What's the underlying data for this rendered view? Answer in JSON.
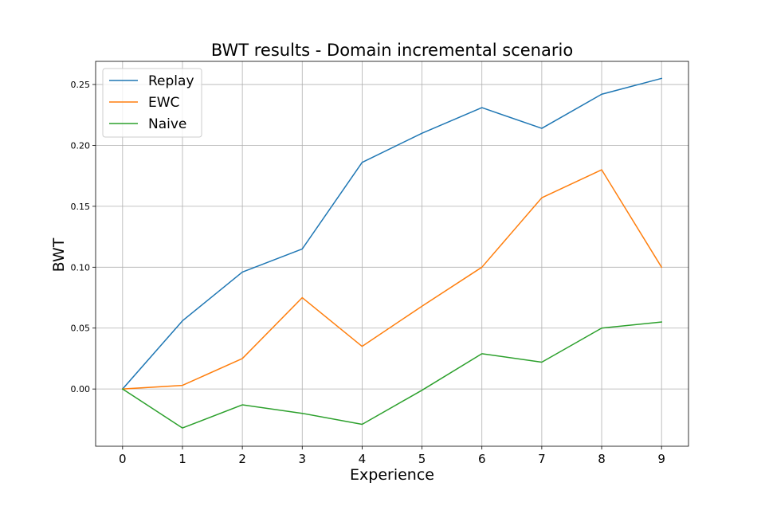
{
  "chart_data": {
    "type": "line",
    "title": "BWT results - Domain incremental scenario",
    "xlabel": "Experience",
    "ylabel": "BWT",
    "x": [
      0,
      1,
      2,
      3,
      4,
      5,
      6,
      7,
      8,
      9
    ],
    "xticks": [
      0,
      1,
      2,
      3,
      4,
      5,
      6,
      7,
      8,
      9
    ],
    "yticks": [
      "0.00",
      "0.05",
      "0.10",
      "0.15",
      "0.20",
      "0.25"
    ],
    "xlim": [
      -0.45,
      9.45
    ],
    "ylim": [
      -0.047,
      0.269
    ],
    "grid": true,
    "legend_position": "top-left",
    "series": [
      {
        "name": "Replay",
        "color": "#1f77b4",
        "values": [
          0.0,
          0.056,
          0.096,
          0.115,
          0.186,
          0.21,
          0.231,
          0.214,
          0.242,
          0.255
        ]
      },
      {
        "name": "EWC",
        "color": "#ff7f0e",
        "values": [
          0.0,
          0.003,
          0.025,
          0.075,
          0.035,
          0.068,
          0.1,
          0.157,
          0.18,
          0.1
        ]
      },
      {
        "name": "Naive",
        "color": "#2ca02c",
        "values": [
          0.0,
          -0.032,
          -0.013,
          -0.02,
          -0.029,
          -0.001,
          0.029,
          0.022,
          0.05,
          0.055
        ]
      }
    ]
  }
}
